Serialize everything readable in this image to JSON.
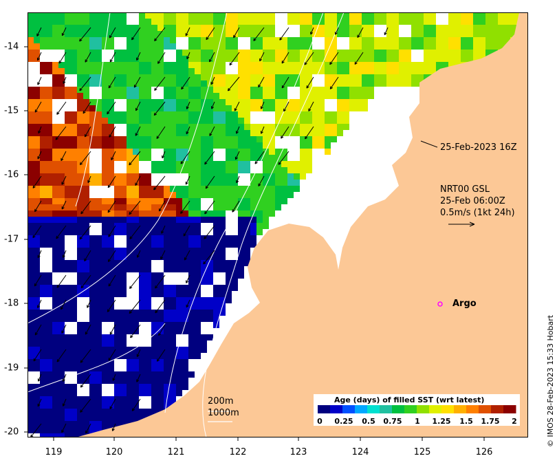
{
  "map": {
    "timestamp_label": "25-Feb-2023 16Z",
    "current_model": {
      "title": "NRT00 GSL",
      "time": "25-Feb 06:00Z",
      "scale_label": "0.5m/s (1kt 24h)"
    },
    "argo_label": "Argo",
    "isobaths": [
      "200m",
      "1000m"
    ],
    "credit": "© IMOS 28-Feb-2023 15:33 Hobart"
  },
  "axes": {
    "x_ticks": [
      "119",
      "120",
      "121",
      "122",
      "123",
      "124",
      "125",
      "126"
    ],
    "y_ticks": [
      "-14",
      "-15",
      "-16",
      "-17",
      "-18",
      "-19",
      "-20"
    ]
  },
  "colorbar": {
    "title": "Age (days) of filled SST (wrt latest)",
    "ticks": [
      "0",
      "0.25",
      "0.5",
      "0.75",
      "1",
      "1.25",
      "1.5",
      "1.75",
      "2"
    ],
    "colors": [
      "#00007f",
      "#0000c8",
      "#0050ff",
      "#00a8ff",
      "#00e0d0",
      "#20c0a0",
      "#00c040",
      "#30d020",
      "#90e000",
      "#e0f000",
      "#ffe000",
      "#ffb000",
      "#ff8000",
      "#e05000",
      "#b02000",
      "#8b0000"
    ]
  },
  "colors": {
    "land": "#fcc896",
    "current_arrow": "#000000",
    "argo_marker": "#ff00ff",
    "isobath": "#ffffff"
  }
}
